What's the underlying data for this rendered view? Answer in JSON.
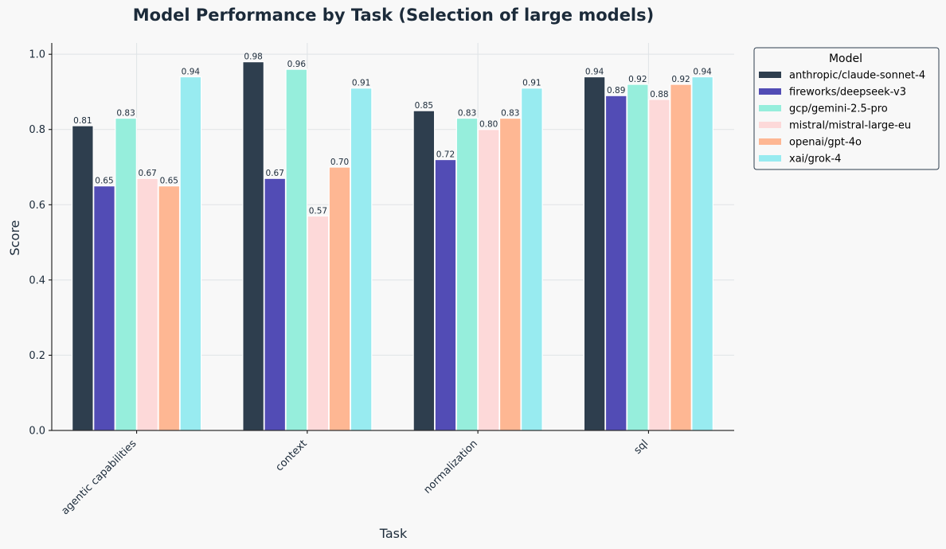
{
  "chart_data": {
    "type": "bar",
    "title": "Model Performance by Task (Selection of large models)",
    "xlabel": "Task",
    "ylabel": "Score",
    "ylim": [
      0,
      1.03
    ],
    "yticks": [
      "0.0",
      "0.2",
      "0.4",
      "0.6",
      "0.8",
      "1.0"
    ],
    "categories": [
      "agentic capabilities",
      "context",
      "normalization",
      "sql"
    ],
    "grid": true,
    "legend": {
      "title": "Model",
      "placement": "top-right-outside"
    },
    "series": [
      {
        "name": "anthropic/claude-sonnet-4",
        "color": "#2e3e4e",
        "values": [
          0.81,
          0.98,
          0.85,
          0.94
        ]
      },
      {
        "name": "fireworks/deepseek-v3",
        "color": "#524cb5",
        "values": [
          0.65,
          0.67,
          0.72,
          0.89
        ]
      },
      {
        "name": "gcp/gemini-2.5-pro",
        "color": "#96eedc",
        "values": [
          0.83,
          0.96,
          0.83,
          0.92
        ]
      },
      {
        "name": "mistral/mistral-large-eu",
        "color": "#fdd9d9",
        "values": [
          0.67,
          0.57,
          0.8,
          0.88
        ]
      },
      {
        "name": "openai/gpt-4o",
        "color": "#feb793",
        "values": [
          0.65,
          0.7,
          0.83,
          0.92
        ]
      },
      {
        "name": "xai/grok-4",
        "color": "#98ebf0",
        "values": [
          0.94,
          0.91,
          0.91,
          0.94
        ]
      }
    ]
  }
}
